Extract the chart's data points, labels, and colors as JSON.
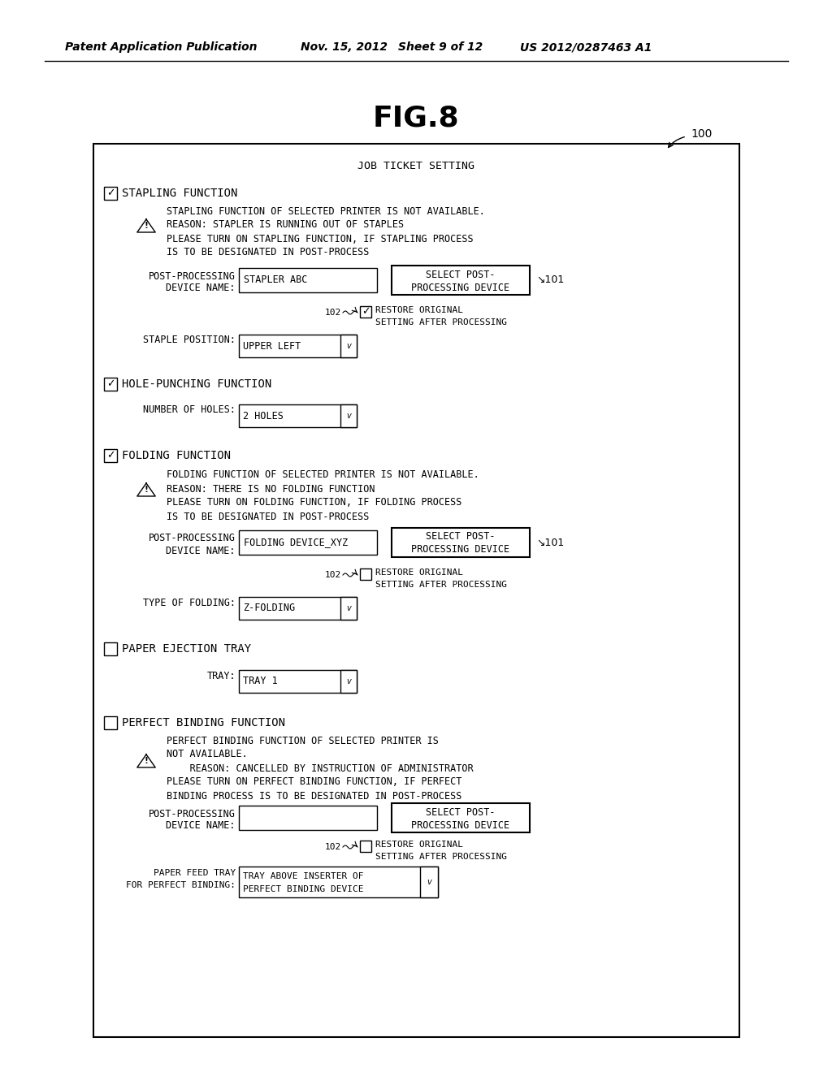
{
  "bg_color": "#ffffff",
  "header_text1": "Patent Application Publication",
  "header_text2": "Nov. 15, 2012",
  "header_text3": "Sheet 9 of 12",
  "header_text4": "US 2012/0287463 A1",
  "fig_title": "FIG.8",
  "ref_100": "100",
  "panel_title": "JOB TICKET SETTING"
}
